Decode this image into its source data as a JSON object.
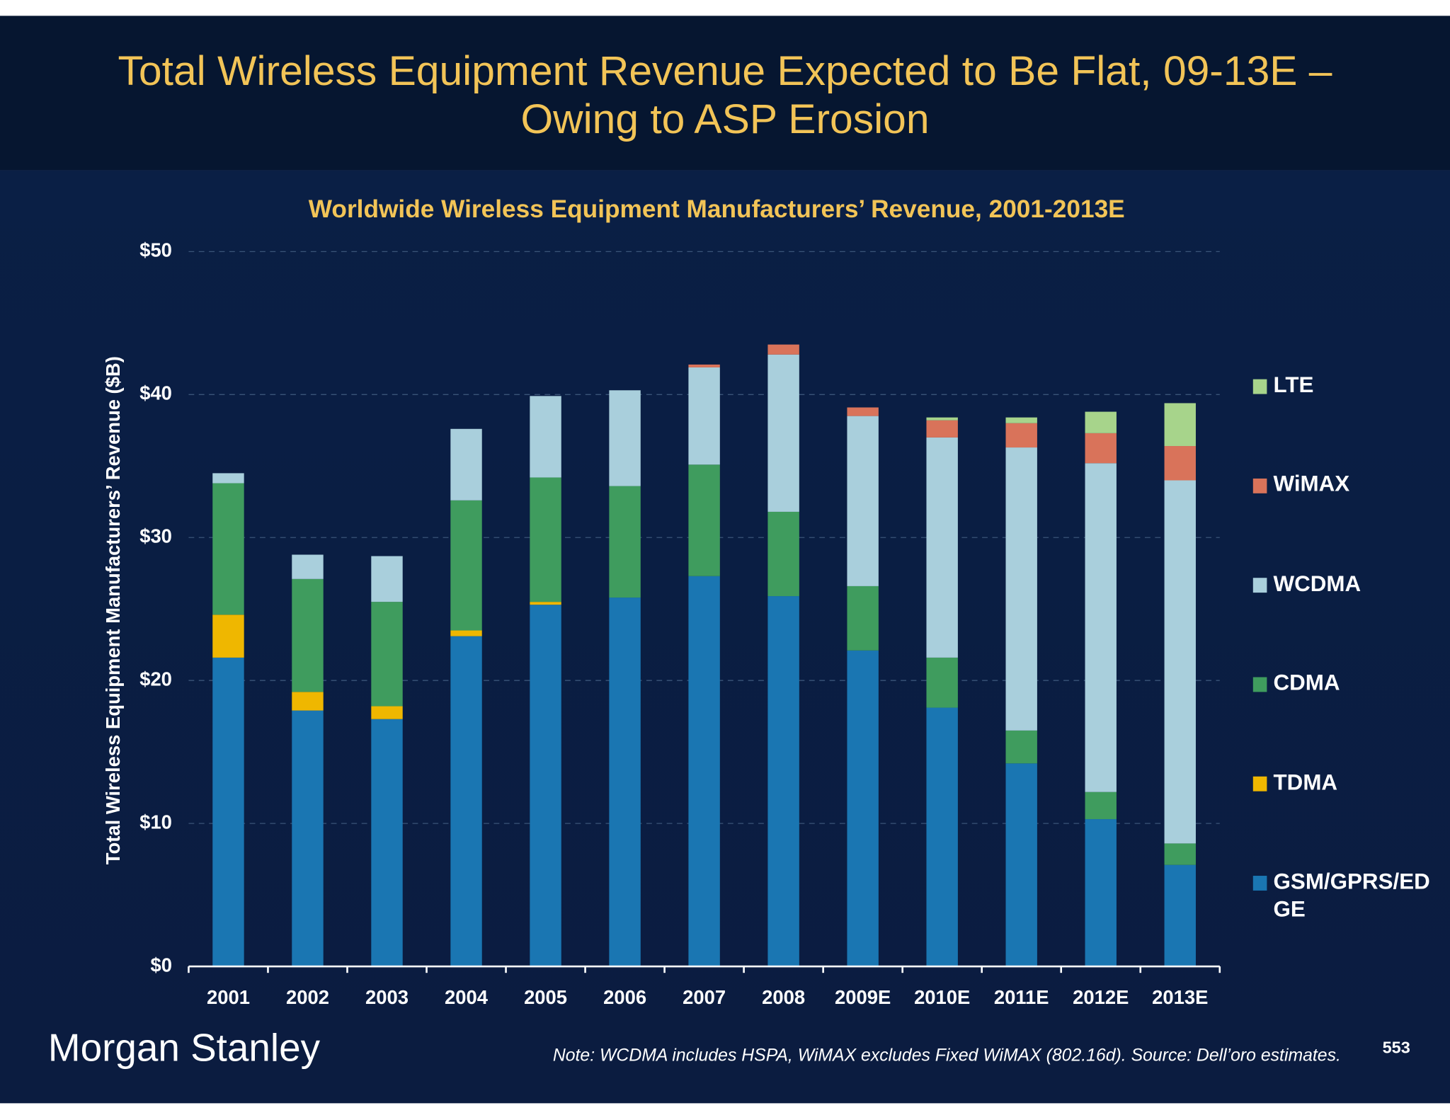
{
  "header": {
    "title_lines": [
      "Total Wireless Equipment Revenue Expected to Be Flat, 09-13E –",
      "Owing to ASP Erosion"
    ]
  },
  "chart_data": {
    "type": "stacked-bar",
    "title": "Worldwide Wireless Equipment Manufacturers’ Revenue, 2001-2013E",
    "y_label": "Total Wireless Equipment Manufacturers’ Revenue ($B)",
    "categories": [
      "2001",
      "2002",
      "2003",
      "2004",
      "2005",
      "2006",
      "2007",
      "2008",
      "2009E",
      "2010E",
      "2011E",
      "2012E",
      "2013E"
    ],
    "series": [
      {
        "name": "GSM/GPRS/EDGE",
        "color": "#1a76b2",
        "values": [
          21.6,
          17.9,
          17.3,
          23.1,
          25.3,
          25.8,
          27.3,
          25.9,
          22.1,
          18.1,
          14.2,
          10.3,
          7.1
        ]
      },
      {
        "name": "TDMA",
        "color": "#efb700",
        "values": [
          3.0,
          1.3,
          0.9,
          0.4,
          0.2,
          0,
          0,
          0,
          0,
          0,
          0,
          0,
          0
        ]
      },
      {
        "name": "CDMA",
        "color": "#3f9c5e",
        "values": [
          9.2,
          7.9,
          7.3,
          9.1,
          8.7,
          7.8,
          7.8,
          5.9,
          4.5,
          3.5,
          2.3,
          1.9,
          1.5
        ]
      },
      {
        "name": "WCDMA",
        "color": "#a9cfdc",
        "values": [
          0.7,
          1.7,
          3.2,
          5.0,
          5.7,
          6.7,
          6.8,
          11.0,
          11.9,
          15.4,
          19.8,
          23.0,
          25.4
        ]
      },
      {
        "name": "WiMAX",
        "color": "#d9735a",
        "values": [
          0,
          0,
          0,
          0,
          0,
          0,
          0.2,
          0.7,
          0.6,
          1.2,
          1.7,
          2.1,
          2.4
        ]
      },
      {
        "name": "LTE",
        "color": "#a7d48b",
        "values": [
          0,
          0,
          0,
          0,
          0,
          0,
          0,
          0,
          0,
          0.2,
          0.4,
          1.5,
          3.0
        ]
      }
    ],
    "ylim": [
      0,
      50
    ],
    "yticks": [
      {
        "value": 0,
        "label": "$0"
      },
      {
        "value": 10,
        "label": "$10"
      },
      {
        "value": 20,
        "label": "$20"
      },
      {
        "value": 30,
        "label": "$30"
      },
      {
        "value": 40,
        "label": "$40"
      },
      {
        "value": 50,
        "label": "$50"
      }
    ],
    "grid": true,
    "legend": "right"
  },
  "footer": {
    "logo": "Morgan Stanley",
    "note": "Note: WCDMA includes HSPA, WiMAX excludes Fixed WiMAX (802.16d). Source: Dell’oro estimates.",
    "page_number": "553"
  }
}
